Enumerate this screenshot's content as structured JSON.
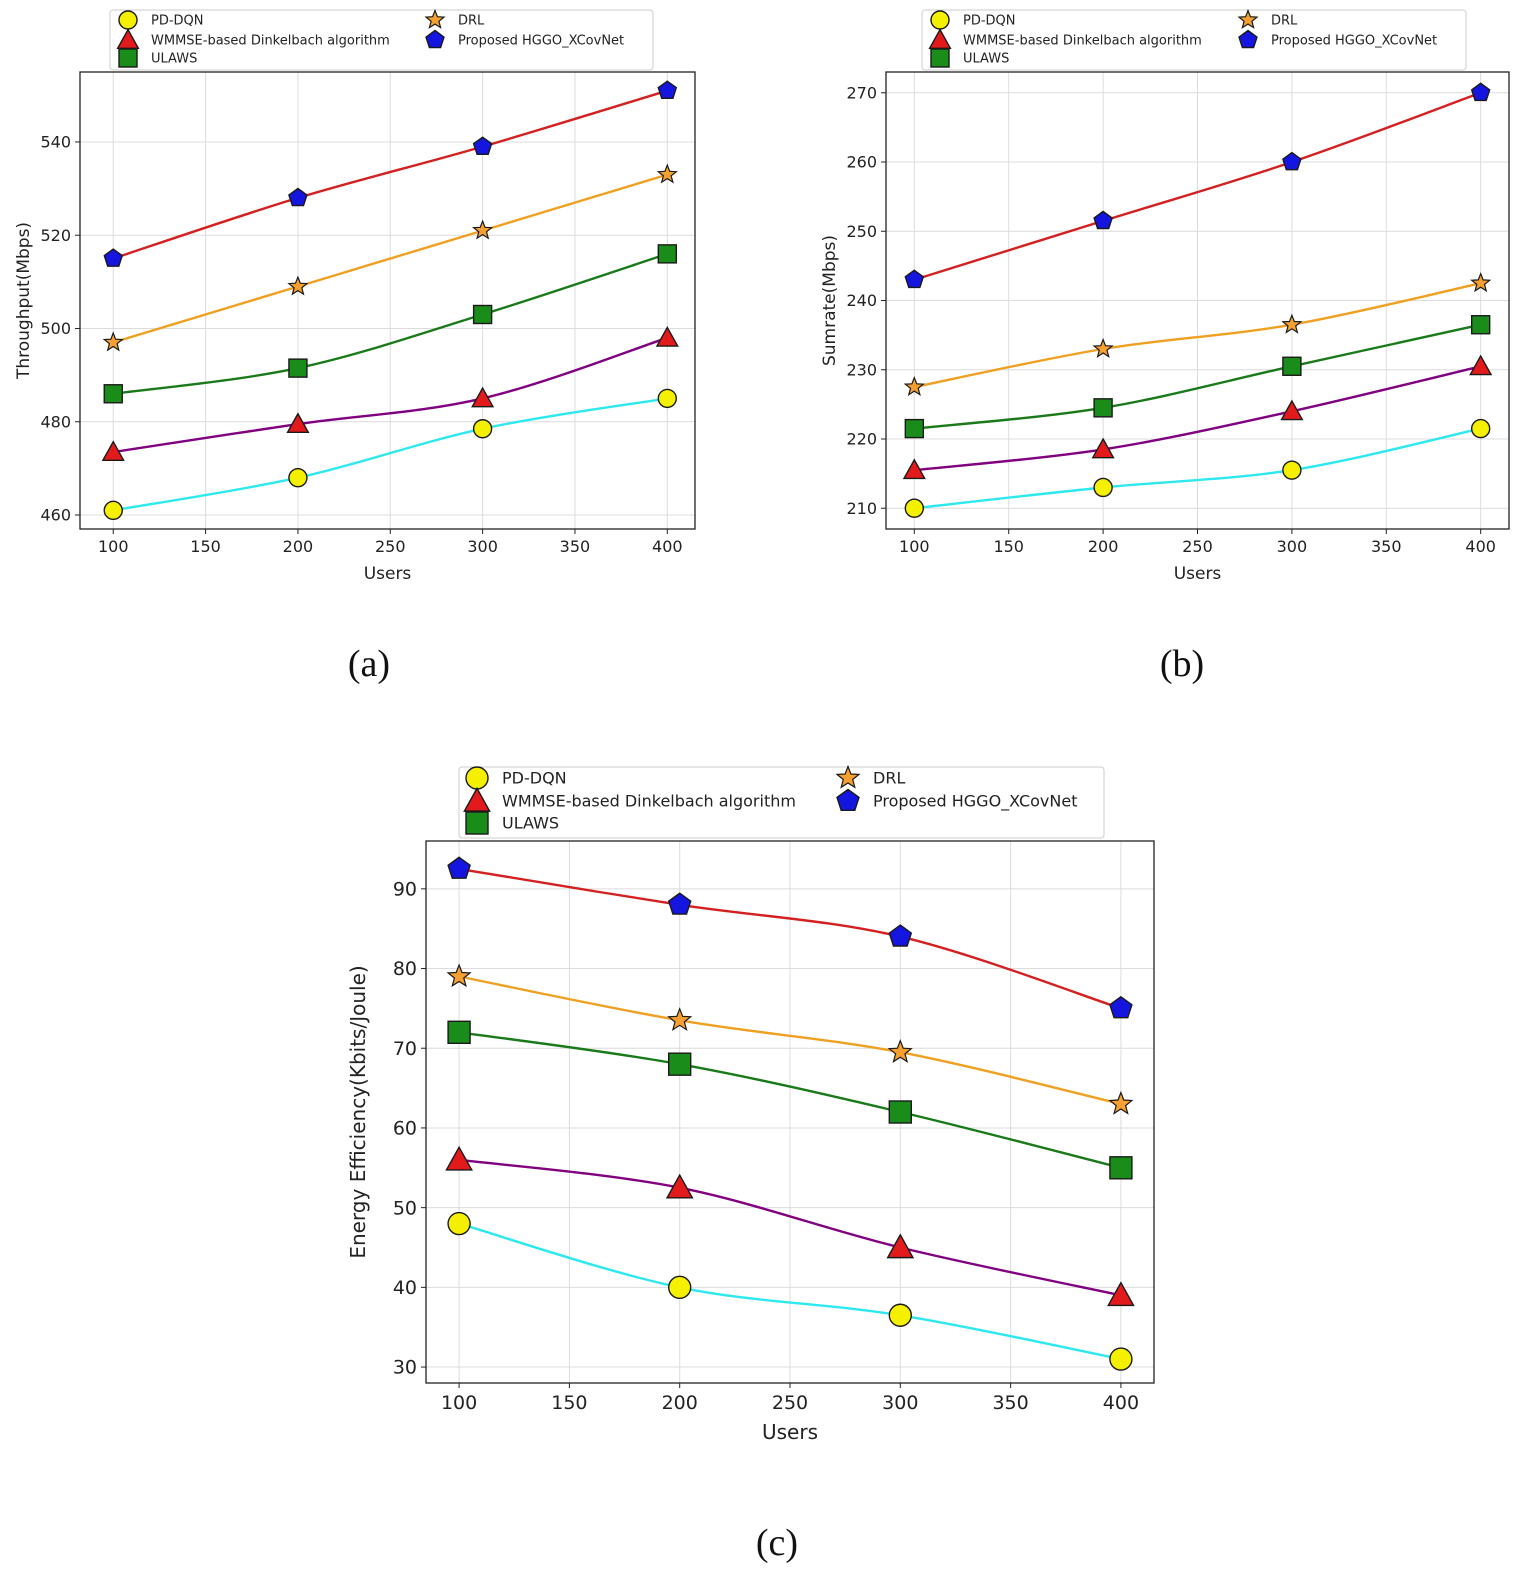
{
  "figure": {
    "captions": [
      "(a)",
      "(b)",
      "(c)"
    ]
  },
  "chart_data": [
    {
      "type": "line",
      "panel": "a",
      "title": "",
      "xlabel": "Users",
      "ylabel": "Throughput(Mbps)",
      "x": [
        100,
        200,
        300,
        400
      ],
      "xlim": [
        82,
        415
      ],
      "ylim": [
        457,
        555
      ],
      "xticks": [
        100,
        150,
        200,
        250,
        300,
        350,
        400
      ],
      "yticks": [
        460,
        480,
        500,
        520,
        540
      ],
      "grid": true,
      "legend_position": "top",
      "series": [
        {
          "name": "PD-DQN",
          "values": [
            461,
            468,
            478.5,
            485
          ],
          "line_color": "#2ee8f0",
          "marker": "circle",
          "marker_color": "#f5f000"
        },
        {
          "name": "WMMSE-based Dinkelbach algorithm",
          "values": [
            473.5,
            479.5,
            485,
            498
          ],
          "line_color": "#800080",
          "marker": "triangle",
          "marker_color": "#e31a1c"
        },
        {
          "name": "ULAWS",
          "values": [
            486,
            491.5,
            503,
            516
          ],
          "line_color": "#1a7a1a",
          "marker": "square",
          "marker_color": "#1a8c1a"
        },
        {
          "name": "DRL",
          "values": [
            497,
            509,
            521,
            533
          ],
          "line_color": "#f0a020",
          "marker": "star",
          "marker_color": "#f5a030"
        },
        {
          "name": "Proposed HGGO_XCovNet",
          "values": [
            515,
            528,
            539,
            551
          ],
          "line_color": "#d42020",
          "marker": "pentagon",
          "marker_color": "#1515e0"
        }
      ]
    },
    {
      "type": "line",
      "panel": "b",
      "title": "",
      "xlabel": "Users",
      "ylabel": "Sumrate(Mbps)",
      "x": [
        100,
        200,
        300,
        400
      ],
      "xlim": [
        85,
        415
      ],
      "ylim": [
        207,
        273
      ],
      "xticks": [
        100,
        150,
        200,
        250,
        300,
        350,
        400
      ],
      "yticks": [
        210,
        220,
        230,
        240,
        250,
        260,
        270
      ],
      "grid": true,
      "legend_position": "top",
      "series": [
        {
          "name": "PD-DQN",
          "values": [
            210,
            213,
            215.5,
            221.5
          ],
          "line_color": "#2ee8f0",
          "marker": "circle",
          "marker_color": "#f5f000"
        },
        {
          "name": "WMMSE-based Dinkelbach algorithm",
          "values": [
            215.5,
            218.5,
            224,
            230.5
          ],
          "line_color": "#800080",
          "marker": "triangle",
          "marker_color": "#e31a1c"
        },
        {
          "name": "ULAWS",
          "values": [
            221.5,
            224.5,
            230.5,
            236.5
          ],
          "line_color": "#1a7a1a",
          "marker": "square",
          "marker_color": "#1a8c1a"
        },
        {
          "name": "DRL",
          "values": [
            227.5,
            233,
            236.5,
            242.5
          ],
          "line_color": "#f0a020",
          "marker": "star",
          "marker_color": "#f5a030"
        },
        {
          "name": "Proposed HGGO_XCovNet",
          "values": [
            243,
            251.5,
            260,
            270
          ],
          "line_color": "#d42020",
          "marker": "pentagon",
          "marker_color": "#1515e0"
        }
      ]
    },
    {
      "type": "line",
      "panel": "c",
      "title": "",
      "xlabel": "Users",
      "ylabel": "Energy Efficiency(Kbits/Joule)",
      "x": [
        100,
        200,
        300,
        400
      ],
      "xlim": [
        85,
        415
      ],
      "ylim": [
        28,
        96
      ],
      "xticks": [
        100,
        150,
        200,
        250,
        300,
        350,
        400
      ],
      "yticks": [
        30,
        40,
        50,
        60,
        70,
        80,
        90
      ],
      "grid": true,
      "legend_position": "top",
      "series": [
        {
          "name": "PD-DQN",
          "values": [
            48,
            40,
            36.5,
            31
          ],
          "line_color": "#2ee8f0",
          "marker": "circle",
          "marker_color": "#f5f000"
        },
        {
          "name": "WMMSE-based Dinkelbach algorithm",
          "values": [
            56,
            52.5,
            45,
            39
          ],
          "line_color": "#800080",
          "marker": "triangle",
          "marker_color": "#e31a1c"
        },
        {
          "name": "ULAWS",
          "values": [
            72,
            68,
            62,
            55
          ],
          "line_color": "#1a7a1a",
          "marker": "square",
          "marker_color": "#1a8c1a"
        },
        {
          "name": "DRL",
          "values": [
            79,
            73.5,
            69.5,
            63
          ],
          "line_color": "#f0a020",
          "marker": "star",
          "marker_color": "#f5a030"
        },
        {
          "name": "Proposed HGGO_XCovNet",
          "values": [
            92.5,
            88,
            84,
            75
          ],
          "line_color": "#d42020",
          "marker": "pentagon",
          "marker_color": "#1515e0"
        }
      ]
    }
  ]
}
